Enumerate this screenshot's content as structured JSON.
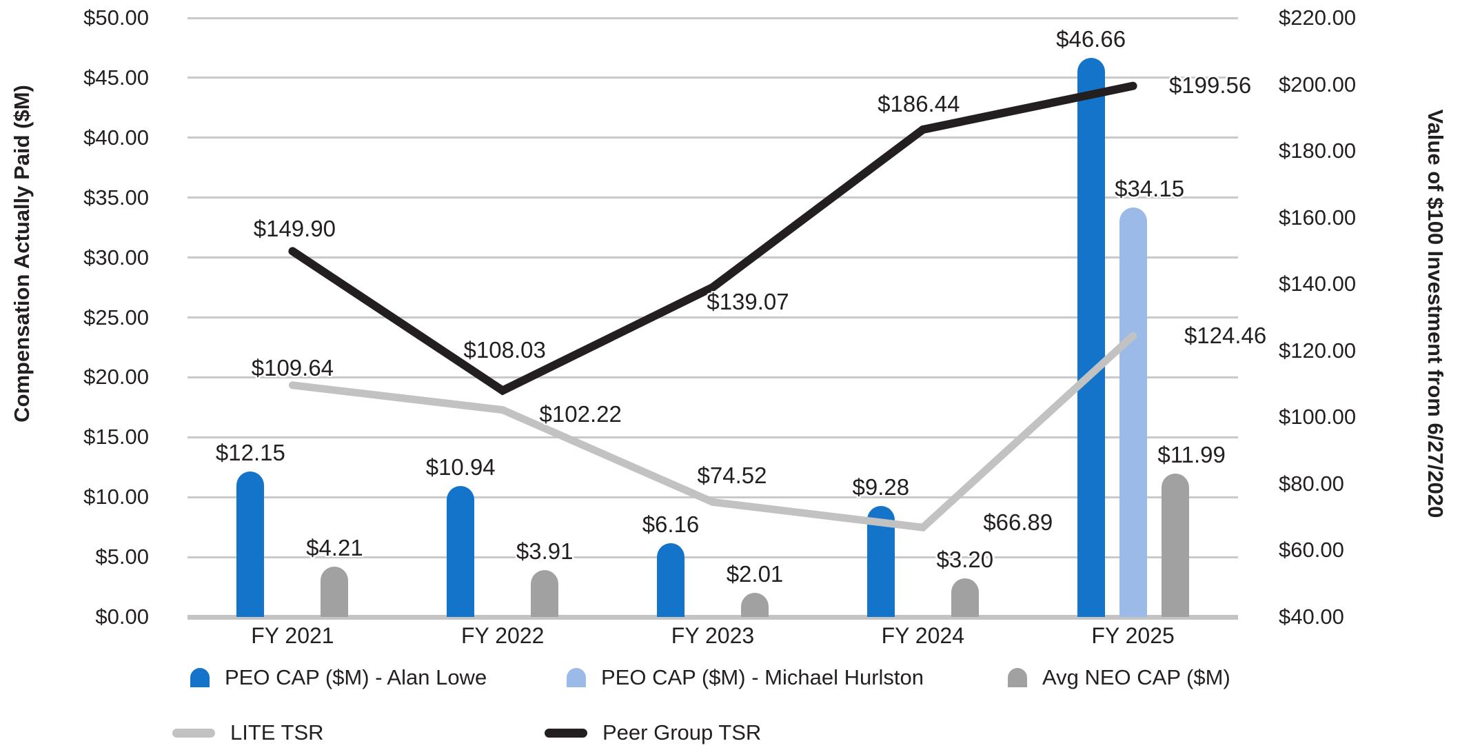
{
  "chart_data": {
    "type": "combo-bar-line",
    "categories": [
      "FY 2021",
      "FY 2022",
      "FY 2023",
      "FY 2024",
      "FY 2025"
    ],
    "left_axis": {
      "label": "Compensation Actually Paid ($M)",
      "min": 0,
      "max": 50,
      "step": 5,
      "tick_labels": [
        "$50.00",
        "$45.00",
        "$40.00",
        "$35.00",
        "$30.00",
        "$25.00",
        "$20.00",
        "$15.00",
        "$10.00",
        "$5.00",
        "$0.00"
      ]
    },
    "right_axis": {
      "label": "Value of $100 Investment from 6/27/2020",
      "min": 40,
      "max": 220,
      "step": 20,
      "tick_labels": [
        "$220.00",
        "$200.00",
        "$180.00",
        "$160.00",
        "$140.00",
        "$120.00",
        "$100.00",
        "$80.00",
        "$60.00",
        "$40.00"
      ]
    },
    "bar_series": [
      {
        "name": "PEO CAP ($M) - Alan Lowe",
        "color": "#1474ca",
        "values": [
          12.15,
          10.94,
          6.16,
          9.28,
          46.66
        ],
        "labels": [
          "$12.15",
          "$10.94",
          "$6.16",
          "$9.28",
          "$46.66"
        ]
      },
      {
        "name": "PEO CAP ($M) - Michael Hurlston",
        "color": "#9cbae8",
        "values": [
          null,
          null,
          null,
          null,
          34.15
        ],
        "labels": [
          null,
          null,
          null,
          null,
          "$34.15"
        ]
      },
      {
        "name": "Avg NEO CAP ($M)",
        "color": "#a1a1a1",
        "values": [
          4.21,
          3.91,
          2.01,
          3.2,
          11.99
        ],
        "labels": [
          "$4.21",
          "$3.91",
          "$2.01",
          "$3.20",
          "$11.99"
        ]
      }
    ],
    "line_series": [
      {
        "name": "LITE TSR",
        "color": "#c2c2c2",
        "values": [
          109.64,
          102.22,
          74.52,
          66.89,
          124.46
        ],
        "labels": [
          "$109.64",
          "$102.22",
          "$74.52",
          "$66.89",
          "$124.46"
        ]
      },
      {
        "name": "Peer Group TSR",
        "color": "#231f20",
        "values": [
          149.9,
          108.03,
          139.07,
          186.44,
          199.56
        ],
        "labels": [
          "$149.90",
          "$108.03",
          "$139.07",
          "$186.44",
          "$199.56"
        ]
      }
    ],
    "colors": {
      "gridline": "#c9c9c9",
      "baseline": "#c3c3c3",
      "text": "#231f20"
    },
    "legend_position": "bottom",
    "grid": "horizontal"
  }
}
